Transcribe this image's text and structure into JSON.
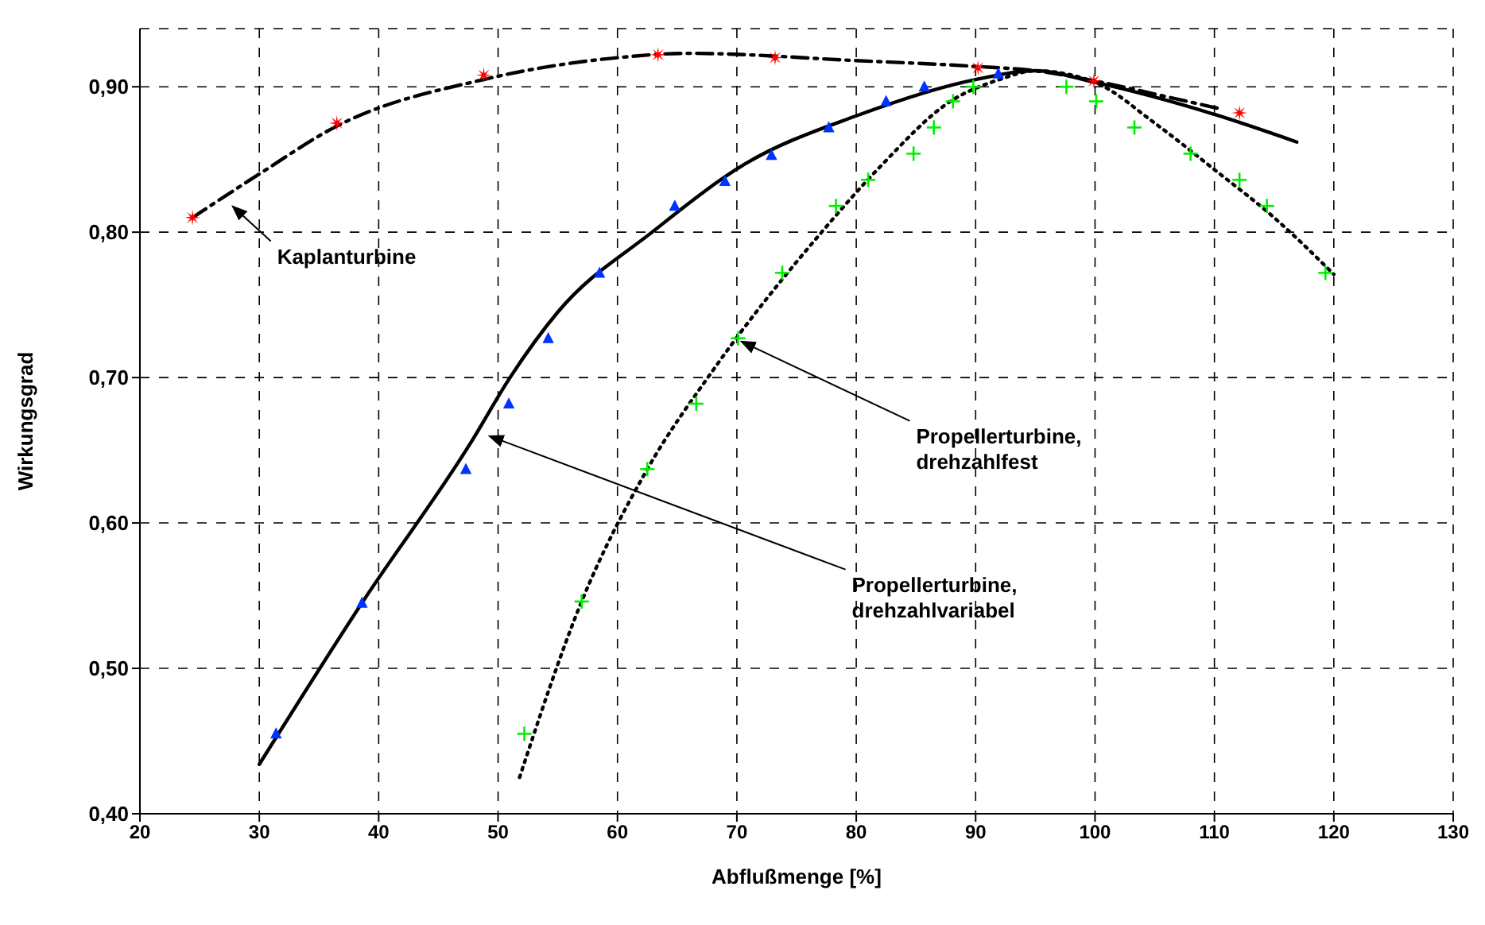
{
  "chart_data": {
    "type": "line",
    "xlabel": "Abflußmenge [%]",
    "ylabel": "Wirkungsgrad",
    "xlim": [
      20,
      130
    ],
    "xticks": [
      20,
      30,
      40,
      50,
      60,
      70,
      80,
      90,
      100,
      110,
      120,
      130
    ],
    "ylim": [
      0.4,
      0.94
    ],
    "yticks": [
      {
        "value": 0.4,
        "label": "0,40"
      },
      {
        "value": 0.5,
        "label": "0,50"
      },
      {
        "value": 0.6,
        "label": "0,60"
      },
      {
        "value": 0.7,
        "label": "0,70"
      },
      {
        "value": 0.8,
        "label": "0,80"
      },
      {
        "value": 0.9,
        "label": "0,90"
      }
    ],
    "grid": true,
    "series": [
      {
        "color": "#000000",
        "line_style": "dashed",
        "marker": "none",
        "x": [
          24.4,
          30,
          36.5,
          48.8,
          60,
          66,
          80,
          90,
          95,
          100,
          105,
          110.4
        ],
        "values": [
          0.81,
          0.84,
          0.873,
          0.905,
          0.92,
          0.923,
          0.918,
          0.914,
          0.911,
          0.904,
          0.895,
          0.885
        ]
      },
      {
        "color": "#000000",
        "line_style": "solid",
        "marker": "none",
        "x": [
          30,
          38.6,
          47.7,
          51,
          55,
          62.9,
          70.7,
          80,
          90,
          95,
          100,
          110,
          116.9
        ],
        "values": [
          0.434,
          0.545,
          0.655,
          0.7,
          0.745,
          0.8,
          0.847,
          0.88,
          0.905,
          0.911,
          0.903,
          0.881,
          0.862
        ]
      },
      {
        "color": "#000000",
        "line_style": "dotted",
        "marker": "none",
        "x": [
          51.8,
          57,
          62.5,
          68,
          77.1,
          82,
          87.9,
          92,
          95,
          100,
          105,
          110,
          115,
          120
        ],
        "values": [
          0.425,
          0.546,
          0.637,
          0.705,
          0.8,
          0.845,
          0.89,
          0.905,
          0.911,
          0.903,
          0.875,
          0.843,
          0.81,
          0.771
        ]
      },
      {
        "type": "scatter",
        "color": "#ff0000",
        "marker": "star",
        "x": [
          24.4,
          36.5,
          48.8,
          63.4,
          73.2,
          90.2,
          99.9,
          112.1
        ],
        "values": [
          0.81,
          0.875,
          0.908,
          0.922,
          0.92,
          0.913,
          0.904,
          0.882
        ]
      },
      {
        "type": "scatter",
        "color": "#0033ff",
        "marker": "triangle",
        "x": [
          31.4,
          38.6,
          47.3,
          50.9,
          54.2,
          58.5,
          64.8,
          69.0,
          72.9,
          77.7,
          82.5,
          85.7,
          91.9
        ],
        "values": [
          0.455,
          0.545,
          0.637,
          0.682,
          0.727,
          0.772,
          0.818,
          0.835,
          0.853,
          0.872,
          0.89,
          0.9,
          0.909
        ]
      },
      {
        "type": "scatter",
        "color": "#00ee00",
        "marker": "cross",
        "x": [
          52.2,
          57.0,
          62.5,
          66.6,
          70.1,
          73.8,
          78.3,
          81.0,
          84.8,
          86.5,
          88.1,
          89.8,
          97.6,
          100.1,
          103.3,
          108.0,
          112.1,
          114.4,
          119.3
        ],
        "values": [
          0.455,
          0.546,
          0.637,
          0.682,
          0.727,
          0.772,
          0.818,
          0.836,
          0.854,
          0.872,
          0.89,
          0.9,
          0.9,
          0.89,
          0.872,
          0.854,
          0.836,
          0.818,
          0.772
        ]
      }
    ],
    "annotations": [
      {
        "text": "Kaplanturbine",
        "x": 27.5,
        "y": 0.82
      },
      {
        "text": "Propellerturbine, drehzahlvariabel",
        "x": 49,
        "y": 0.662
      },
      {
        "text": "Propellerturbine, drehzahlfest",
        "x": 70.1,
        "y": 0.727
      }
    ]
  }
}
